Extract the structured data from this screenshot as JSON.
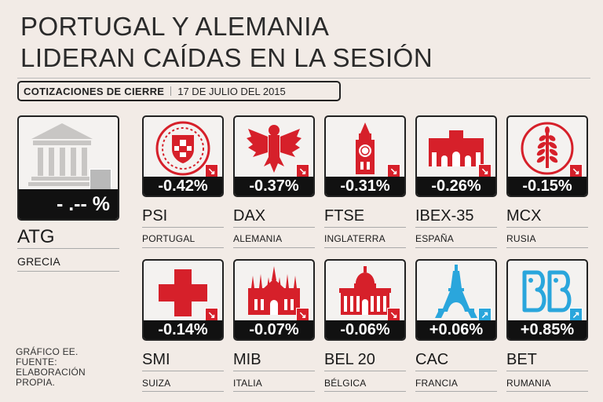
{
  "title": {
    "line1": "PORTUGAL Y ALEMANIA",
    "line2": "LIDERAN CAÍDAS EN LA SESIÓN"
  },
  "header": {
    "label": "COTIZACIONES DE CIERRE",
    "date": "17 DE JULIO DEL 2015"
  },
  "featured": {
    "pct": "- .-- %",
    "name": "ATG",
    "country": "GRECIA",
    "icon": "greek-temple-icon"
  },
  "colors": {
    "red": "#d6202a",
    "blue": "#2aa6dc",
    "black": "#111111",
    "background": "#f2ebe6"
  },
  "indices": [
    {
      "pct": "-0.42%",
      "name": "PSI",
      "country": "PORTUGAL",
      "trend": "down",
      "icon": "portugal-shield-icon"
    },
    {
      "pct": "-0.37%",
      "name": "DAX",
      "country": "ALEMANIA",
      "trend": "down",
      "icon": "german-eagle-icon"
    },
    {
      "pct": "-0.31%",
      "name": "FTSE",
      "country": "INGLATERRA",
      "trend": "down",
      "icon": "big-ben-icon"
    },
    {
      "pct": "-0.26%",
      "name": "IBEX-35",
      "country": "ESPAÑA",
      "trend": "down",
      "icon": "puerta-alcala-icon"
    },
    {
      "pct": "-0.15%",
      "name": "MCX",
      "country": "RUSIA",
      "trend": "down",
      "icon": "wheat-emblem-icon"
    },
    {
      "pct": "-0.14%",
      "name": "SMI",
      "country": "SUIZA",
      "trend": "down",
      "icon": "swiss-cross-icon"
    },
    {
      "pct": "-0.07%",
      "name": "MIB",
      "country": "ITALIA",
      "trend": "down",
      "icon": "milan-cathedral-icon"
    },
    {
      "pct": "-0.06%",
      "name": "BEL 20",
      "country": "BÉLGICA",
      "trend": "down",
      "icon": "palace-justice-icon"
    },
    {
      "pct": "+0.06%",
      "name": "CAC",
      "country": "FRANCIA",
      "trend": "up",
      "icon": "eiffel-tower-icon"
    },
    {
      "pct": "+0.85%",
      "name": "BET",
      "country": "RUMANIA",
      "trend": "up",
      "icon": "bet-logo-icon"
    }
  ],
  "footer": {
    "line1": "GRÁFICO EE.",
    "line2": "FUENTE:",
    "line3": "ELABORACIÓN",
    "line4": "PROPIA."
  }
}
